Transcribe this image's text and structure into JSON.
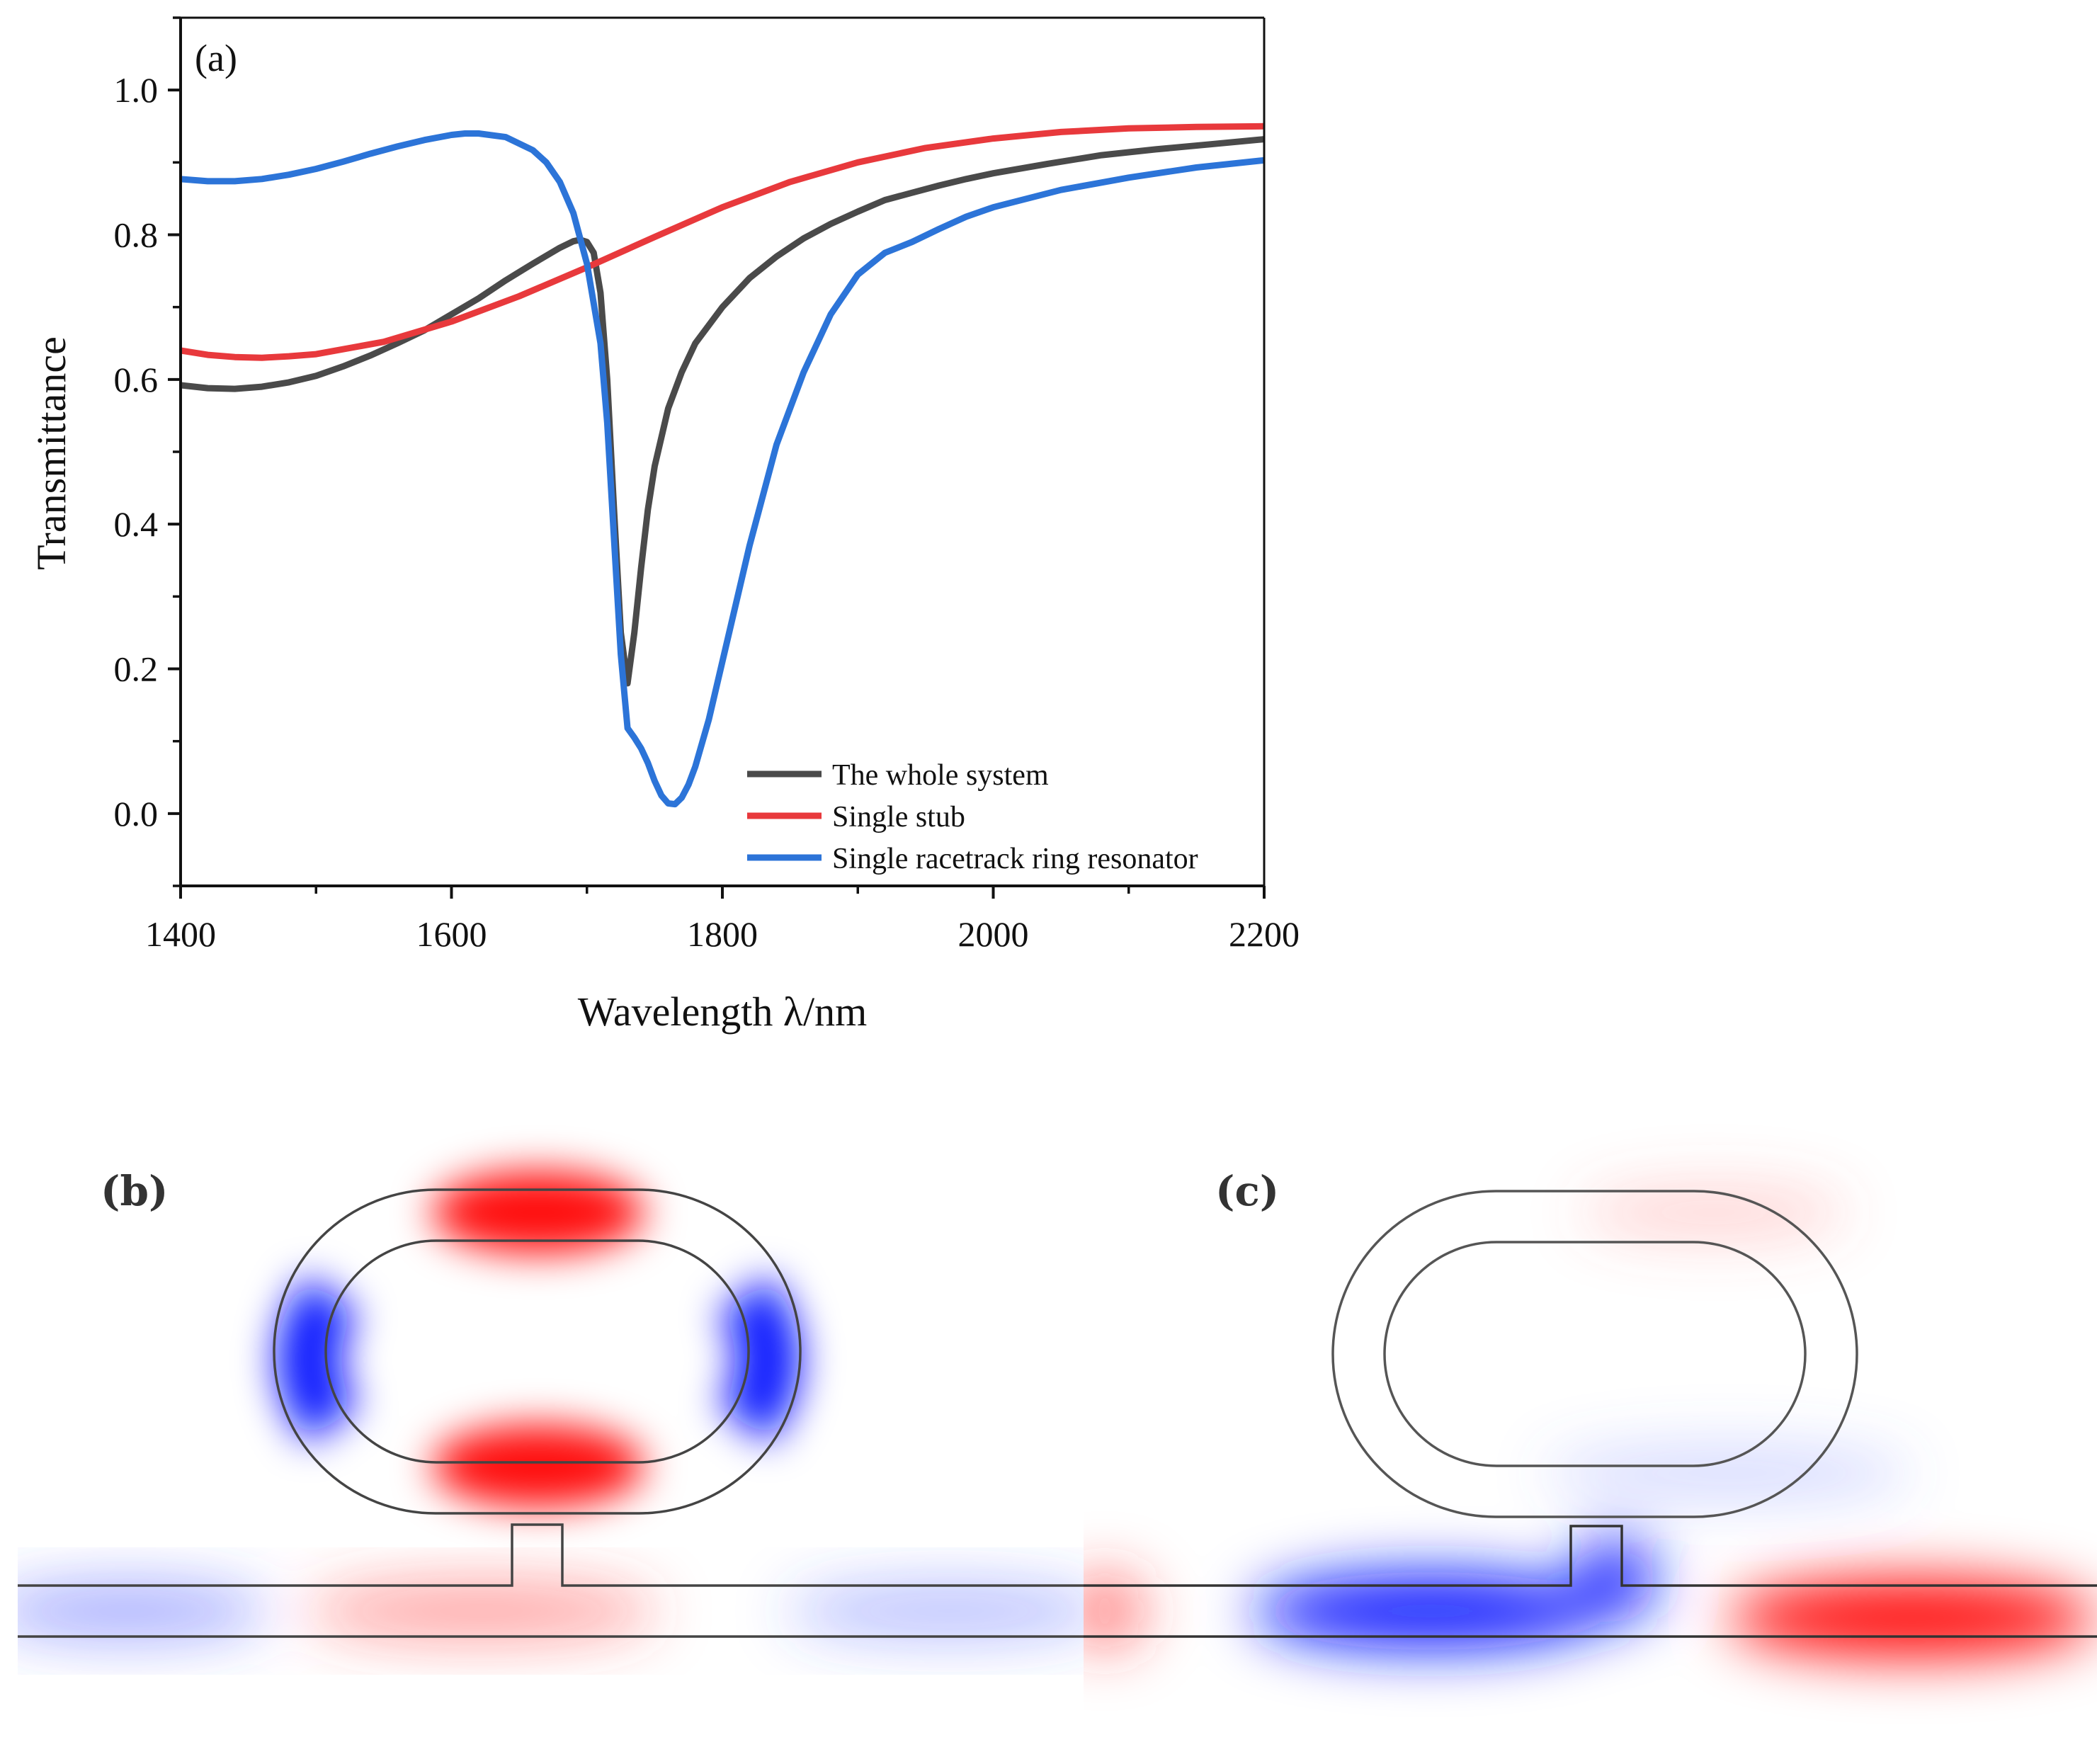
{
  "chart_data": {
    "type": "line",
    "panel_label": "(a)",
    "xlabel": "Wavelength λ/nm",
    "ylabel": "Transmittance",
    "xlim": [
      1400,
      2200
    ],
    "ylim": [
      -0.1,
      1.1
    ],
    "xticks": [
      1400,
      1600,
      1800,
      2000,
      2200
    ],
    "yticks": [
      0.0,
      0.2,
      0.4,
      0.6,
      0.8,
      1.0
    ],
    "xtick_labels": [
      "1400",
      "1600",
      "1800",
      "2000",
      "2200"
    ],
    "ytick_labels": [
      "0.0",
      "0.2",
      "0.4",
      "0.6",
      "0.8",
      "1.0"
    ],
    "grid": false,
    "legend_position": "bottom-right",
    "series": [
      {
        "name": "The whole system",
        "color": "#4a4a4a",
        "x": [
          1400,
          1420,
          1440,
          1460,
          1480,
          1500,
          1520,
          1540,
          1560,
          1580,
          1600,
          1620,
          1640,
          1660,
          1680,
          1690,
          1695,
          1700,
          1705,
          1710,
          1715,
          1720,
          1725,
          1730,
          1735,
          1740,
          1745,
          1750,
          1760,
          1770,
          1780,
          1800,
          1820,
          1840,
          1860,
          1880,
          1900,
          1920,
          1940,
          1960,
          1980,
          2000,
          2040,
          2080,
          2120,
          2160,
          2200
        ],
        "y": [
          0.592,
          0.588,
          0.587,
          0.59,
          0.596,
          0.605,
          0.618,
          0.633,
          0.65,
          0.668,
          0.69,
          0.712,
          0.737,
          0.76,
          0.782,
          0.791,
          0.793,
          0.79,
          0.775,
          0.72,
          0.6,
          0.42,
          0.25,
          0.18,
          0.25,
          0.34,
          0.42,
          0.48,
          0.56,
          0.61,
          0.65,
          0.7,
          0.74,
          0.77,
          0.795,
          0.815,
          0.832,
          0.848,
          0.858,
          0.868,
          0.877,
          0.885,
          0.898,
          0.91,
          0.918,
          0.925,
          0.932
        ]
      },
      {
        "name": "Single stub",
        "color": "#e8393c",
        "x": [
          1400,
          1420,
          1440,
          1460,
          1480,
          1500,
          1550,
          1600,
          1650,
          1700,
          1750,
          1800,
          1850,
          1900,
          1950,
          2000,
          2050,
          2100,
          2150,
          2200
        ],
        "y": [
          0.64,
          0.634,
          0.631,
          0.63,
          0.632,
          0.635,
          0.652,
          0.68,
          0.715,
          0.755,
          0.797,
          0.838,
          0.873,
          0.9,
          0.92,
          0.933,
          0.942,
          0.947,
          0.949,
          0.95
        ]
      },
      {
        "name": "Single racetrack ring resonator",
        "color": "#2c74d8",
        "x": [
          1400,
          1420,
          1440,
          1460,
          1480,
          1500,
          1520,
          1540,
          1560,
          1580,
          1600,
          1610,
          1620,
          1640,
          1660,
          1670,
          1680,
          1690,
          1700,
          1710,
          1715,
          1720,
          1725,
          1730,
          1735,
          1740,
          1745,
          1750,
          1755,
          1760,
          1765,
          1770,
          1775,
          1780,
          1790,
          1800,
          1820,
          1840,
          1860,
          1880,
          1900,
          1920,
          1940,
          1960,
          1980,
          2000,
          2050,
          2100,
          2150,
          2200
        ],
        "y": [
          0.877,
          0.874,
          0.874,
          0.877,
          0.883,
          0.891,
          0.901,
          0.912,
          0.922,
          0.931,
          0.938,
          0.94,
          0.94,
          0.935,
          0.917,
          0.9,
          0.873,
          0.83,
          0.76,
          0.65,
          0.54,
          0.38,
          0.22,
          0.118,
          0.105,
          0.09,
          0.07,
          0.045,
          0.025,
          0.014,
          0.013,
          0.022,
          0.04,
          0.065,
          0.13,
          0.21,
          0.37,
          0.51,
          0.61,
          0.69,
          0.745,
          0.775,
          0.79,
          0.808,
          0.825,
          0.838,
          0.862,
          0.879,
          0.893,
          0.903
        ]
      }
    ]
  },
  "field_maps": {
    "panel_b_label": "(b)",
    "panel_c_label": "(c)"
  }
}
